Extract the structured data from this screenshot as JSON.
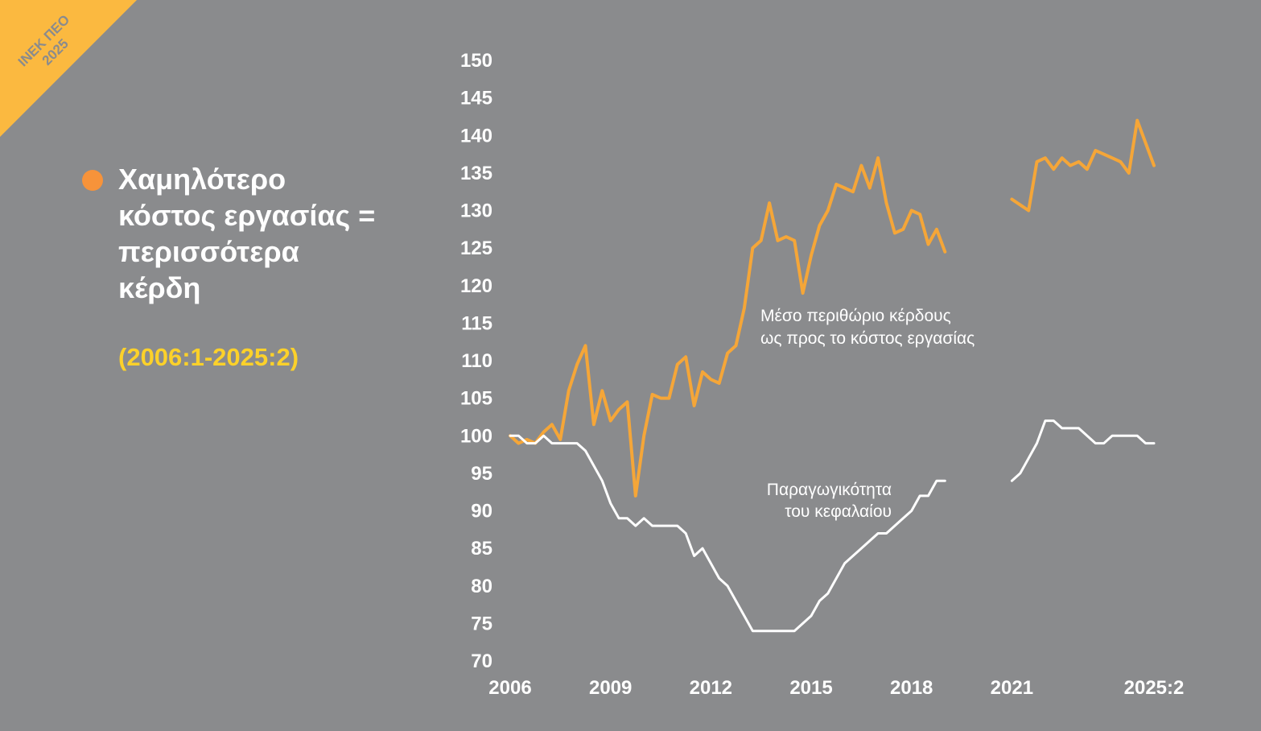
{
  "badge": {
    "line1": "ΙΝΕΚ ΠΕΟ",
    "line2": "2025",
    "color": "#fbb940"
  },
  "heading": {
    "title": "Χαμηλότερο\nκόστος εργασίας =\nπερισσότερα\nκέρδη",
    "period": "(2006:1-2025:2)",
    "bullet_color": "#f7933a",
    "period_color": "#fcd12a"
  },
  "chart_data": {
    "type": "line",
    "title": "Χαμηλότερο κόστος εργασίας = περισσότερα κέρδη",
    "subtitle": "(2006:1-2025:2)",
    "xlabel": "",
    "ylabel": "",
    "ylim": [
      70,
      150
    ],
    "xlim": [
      2006.0,
      2025.25
    ],
    "y_ticks": [
      "150",
      "145",
      "140",
      "135",
      "130",
      "125",
      "120",
      "115",
      "110",
      "105",
      "100",
      "95",
      "90",
      "85",
      "80",
      "75",
      "70"
    ],
    "x_ticks": [
      {
        "value": 2006.0,
        "label": "2006"
      },
      {
        "value": 2009.0,
        "label": "2009"
      },
      {
        "value": 2012.0,
        "label": "2012"
      },
      {
        "value": 2015.0,
        "label": "2015"
      },
      {
        "value": 2018.0,
        "label": "2018"
      },
      {
        "value": 2021.0,
        "label": "2021"
      },
      {
        "value": 2025.25,
        "label": "2025:2"
      }
    ],
    "series": [
      {
        "name": "Μέσο περιθώριο κέρδους ως προς το κόστος εργασίας",
        "label_lines": [
          "Μέσο περιθώριο κέρδους",
          "ως προς το κόστος εργασίας"
        ],
        "color": "#f5a638",
        "segments": [
          [
            [
              2006.0,
              100
            ],
            [
              2006.25,
              99
            ],
            [
              2006.5,
              99.5
            ],
            [
              2006.75,
              99
            ],
            [
              2007.0,
              100.5
            ],
            [
              2007.25,
              101.5
            ],
            [
              2007.5,
              99.5
            ],
            [
              2007.75,
              106
            ],
            [
              2008.0,
              109.5
            ],
            [
              2008.25,
              112
            ],
            [
              2008.5,
              101.5
            ],
            [
              2008.75,
              106
            ],
            [
              2009.0,
              102
            ],
            [
              2009.25,
              103.5
            ],
            [
              2009.5,
              104.5
            ],
            [
              2009.75,
              92
            ],
            [
              2010.0,
              100
            ],
            [
              2010.25,
              105.5
            ],
            [
              2010.5,
              105
            ],
            [
              2010.75,
              105
            ],
            [
              2011.0,
              109.5
            ],
            [
              2011.25,
              110.5
            ],
            [
              2011.5,
              104
            ],
            [
              2011.75,
              108.5
            ],
            [
              2012.0,
              107.5
            ],
            [
              2012.25,
              107
            ],
            [
              2012.5,
              111
            ],
            [
              2012.75,
              112
            ],
            [
              2013.0,
              117
            ],
            [
              2013.25,
              125
            ],
            [
              2013.5,
              126
            ],
            [
              2013.75,
              131
            ],
            [
              2014.0,
              126
            ],
            [
              2014.25,
              126.5
            ],
            [
              2014.5,
              126
            ],
            [
              2014.75,
              119
            ],
            [
              2015.0,
              124
            ],
            [
              2015.25,
              128
            ],
            [
              2015.5,
              130
            ],
            [
              2015.75,
              133.5
            ],
            [
              2016.0,
              133
            ],
            [
              2016.25,
              132.5
            ],
            [
              2016.5,
              136
            ],
            [
              2016.75,
              133
            ],
            [
              2017.0,
              137
            ],
            [
              2017.25,
              131
            ],
            [
              2017.5,
              127
            ],
            [
              2017.75,
              127.5
            ],
            [
              2018.0,
              130
            ],
            [
              2018.25,
              129.5
            ],
            [
              2018.5,
              125.5
            ],
            [
              2018.75,
              127.5
            ],
            [
              2019.0,
              124.5
            ]
          ],
          [
            [
              2021.0,
              131.5
            ],
            [
              2021.5,
              130
            ],
            [
              2021.75,
              136.5
            ],
            [
              2022.0,
              137
            ],
            [
              2022.25,
              135.5
            ],
            [
              2022.5,
              137
            ],
            [
              2022.75,
              136
            ],
            [
              2023.0,
              136.5
            ],
            [
              2023.25,
              135.5
            ],
            [
              2023.5,
              138
            ],
            [
              2023.75,
              137.5
            ],
            [
              2024.0,
              137
            ],
            [
              2024.25,
              136.5
            ],
            [
              2024.5,
              135
            ],
            [
              2024.75,
              142
            ],
            [
              2025.0,
              139
            ],
            [
              2025.25,
              136
            ]
          ]
        ]
      },
      {
        "name": "Παραγωγικότητα του κεφαλαίου",
        "label_lines": [
          "Παραγωγικότητα",
          "του κεφαλαίου"
        ],
        "color": "#ffffff",
        "segments": [
          [
            [
              2006.0,
              100
            ],
            [
              2006.25,
              100
            ],
            [
              2006.5,
              99
            ],
            [
              2006.75,
              99
            ],
            [
              2007.0,
              100
            ],
            [
              2007.25,
              99
            ],
            [
              2008.0,
              99
            ],
            [
              2008.25,
              98
            ],
            [
              2008.5,
              96
            ],
            [
              2008.75,
              94
            ],
            [
              2009.0,
              91
            ],
            [
              2009.25,
              89
            ],
            [
              2009.5,
              89
            ],
            [
              2009.75,
              88
            ],
            [
              2010.0,
              89
            ],
            [
              2010.25,
              88
            ],
            [
              2011.0,
              88
            ],
            [
              2011.25,
              87
            ],
            [
              2011.5,
              84
            ],
            [
              2011.75,
              85
            ],
            [
              2012.0,
              83
            ],
            [
              2012.25,
              81
            ],
            [
              2012.5,
              80
            ],
            [
              2012.75,
              78
            ],
            [
              2013.0,
              76
            ],
            [
              2013.25,
              74
            ],
            [
              2014.5,
              74
            ],
            [
              2014.75,
              75
            ],
            [
              2015.0,
              76
            ],
            [
              2015.25,
              78
            ],
            [
              2015.5,
              79
            ],
            [
              2016.0,
              83
            ],
            [
              2016.5,
              85
            ],
            [
              2017.0,
              87
            ],
            [
              2017.25,
              87
            ],
            [
              2017.5,
              88
            ],
            [
              2017.75,
              89
            ],
            [
              2018.0,
              90
            ],
            [
              2018.25,
              92
            ],
            [
              2018.5,
              92
            ],
            [
              2018.75,
              94
            ],
            [
              2019.0,
              94
            ]
          ],
          [
            [
              2021.0,
              94
            ],
            [
              2021.25,
              95
            ],
            [
              2021.5,
              97
            ],
            [
              2021.75,
              99
            ],
            [
              2022.0,
              102
            ],
            [
              2022.25,
              102
            ],
            [
              2022.5,
              101
            ],
            [
              2023.0,
              101
            ],
            [
              2023.5,
              99
            ],
            [
              2023.75,
              99
            ],
            [
              2024.0,
              100
            ],
            [
              2024.75,
              100
            ],
            [
              2025.0,
              99
            ],
            [
              2025.25,
              99
            ]
          ]
        ]
      }
    ]
  }
}
